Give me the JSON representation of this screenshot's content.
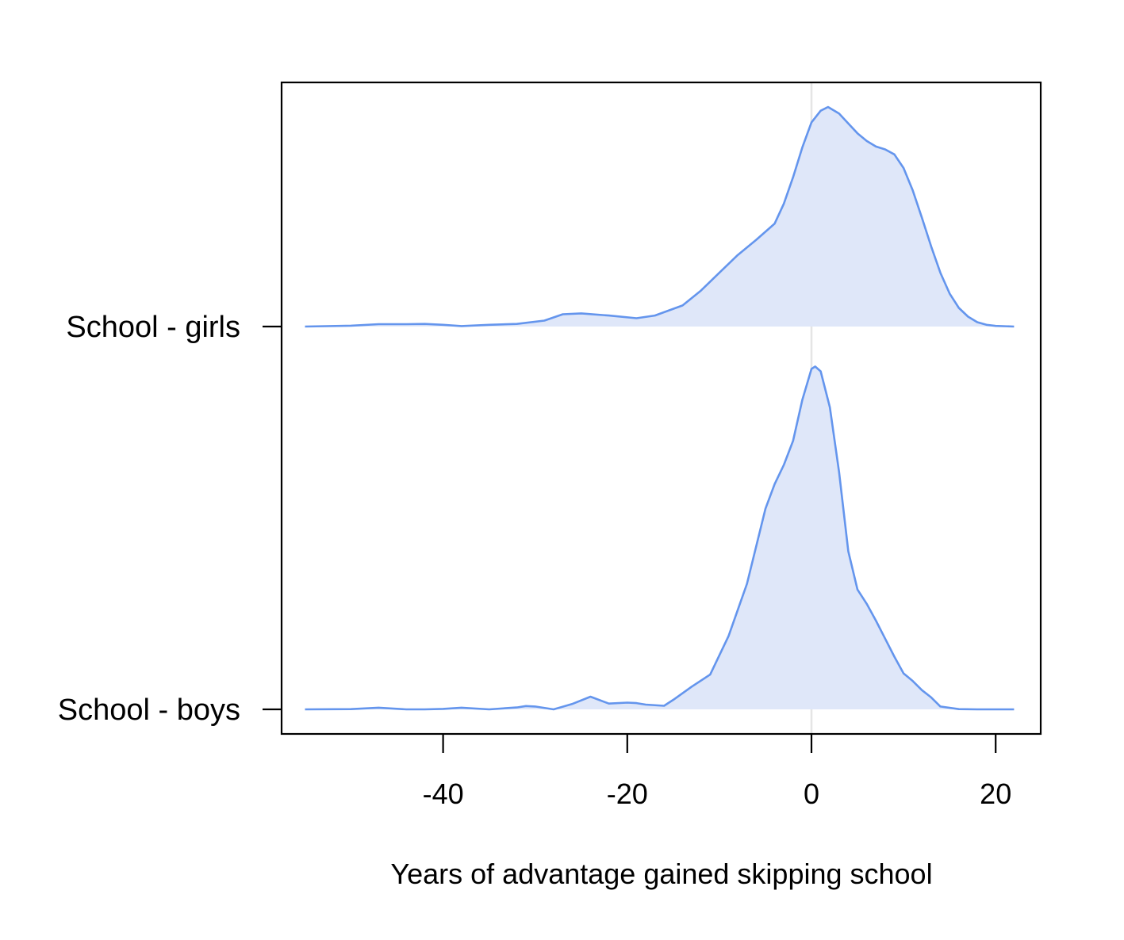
{
  "chart_data": {
    "type": "area",
    "subtype": "ridgeline-density",
    "title": "",
    "xlabel": "Years of advantage gained skipping school",
    "ylabel": "",
    "xlim": [
      -58.8,
      23.5
    ],
    "x_ticks": [
      -40,
      -20,
      0,
      20
    ],
    "x_tick_labels": [
      "-40",
      "-20",
      "0",
      "20"
    ],
    "reference_line_x": 0,
    "grid": false,
    "legend": "none",
    "colors": {
      "line": "#6495ED",
      "fill": "#DFE7F9",
      "reference": "#E5E5E5",
      "frame": "#000000"
    },
    "categories": [
      "School - girls",
      "School - boys"
    ],
    "series": [
      {
        "name": "School - girls",
        "x": [
          -55,
          -50,
          -47,
          -44,
          -42,
          -40,
          -38,
          -35,
          -32,
          -29,
          -27,
          -25,
          -22,
          -19,
          -17,
          -14,
          -12,
          -10,
          -8,
          -6,
          -4,
          -3,
          -2,
          -1,
          0,
          1,
          1.8,
          3,
          4,
          5,
          6,
          7,
          8,
          9,
          10,
          11,
          12,
          13,
          14,
          15,
          16,
          17,
          18,
          19,
          20,
          22
        ],
        "density": [
          0.0,
          0.004,
          0.011,
          0.011,
          0.012,
          0.008,
          0.002,
          0.008,
          0.012,
          0.027,
          0.056,
          0.06,
          0.05,
          0.038,
          0.05,
          0.096,
          0.164,
          0.245,
          0.326,
          0.395,
          0.469,
          0.56,
          0.68,
          0.815,
          0.93,
          0.983,
          1.0,
          0.97,
          0.925,
          0.88,
          0.845,
          0.82,
          0.807,
          0.784,
          0.722,
          0.62,
          0.495,
          0.365,
          0.245,
          0.15,
          0.085,
          0.045,
          0.02,
          0.008,
          0.003,
          0.0
        ]
      },
      {
        "name": "School - boys",
        "x": [
          -55,
          -50,
          -47,
          -44,
          -42,
          -40,
          -38,
          -35,
          -32,
          -31,
          -30,
          -28,
          -26,
          -24,
          -22,
          -20,
          -19,
          -18,
          -16,
          -15,
          -13,
          -11,
          -9,
          -7,
          -5,
          -4,
          -3,
          -2,
          -1,
          0,
          0.4,
          1,
          2,
          3,
          4,
          5,
          6,
          7,
          8,
          9,
          10,
          11,
          12,
          13,
          14,
          16,
          18,
          22
        ],
        "density": [
          0.0,
          0.001,
          0.007,
          0.0,
          0.0,
          0.002,
          0.007,
          0.0,
          0.008,
          0.014,
          0.012,
          0.0,
          0.022,
          0.053,
          0.024,
          0.028,
          0.026,
          0.02,
          0.015,
          0.04,
          0.095,
          0.145,
          0.306,
          0.524,
          0.837,
          0.94,
          1.02,
          1.12,
          1.29,
          1.42,
          1.43,
          1.41,
          1.26,
          0.99,
          0.66,
          0.5,
          0.44,
          0.37,
          0.295,
          0.22,
          0.15,
          0.118,
          0.08,
          0.05,
          0.012,
          0.001,
          0.0,
          0.0
        ]
      }
    ]
  }
}
